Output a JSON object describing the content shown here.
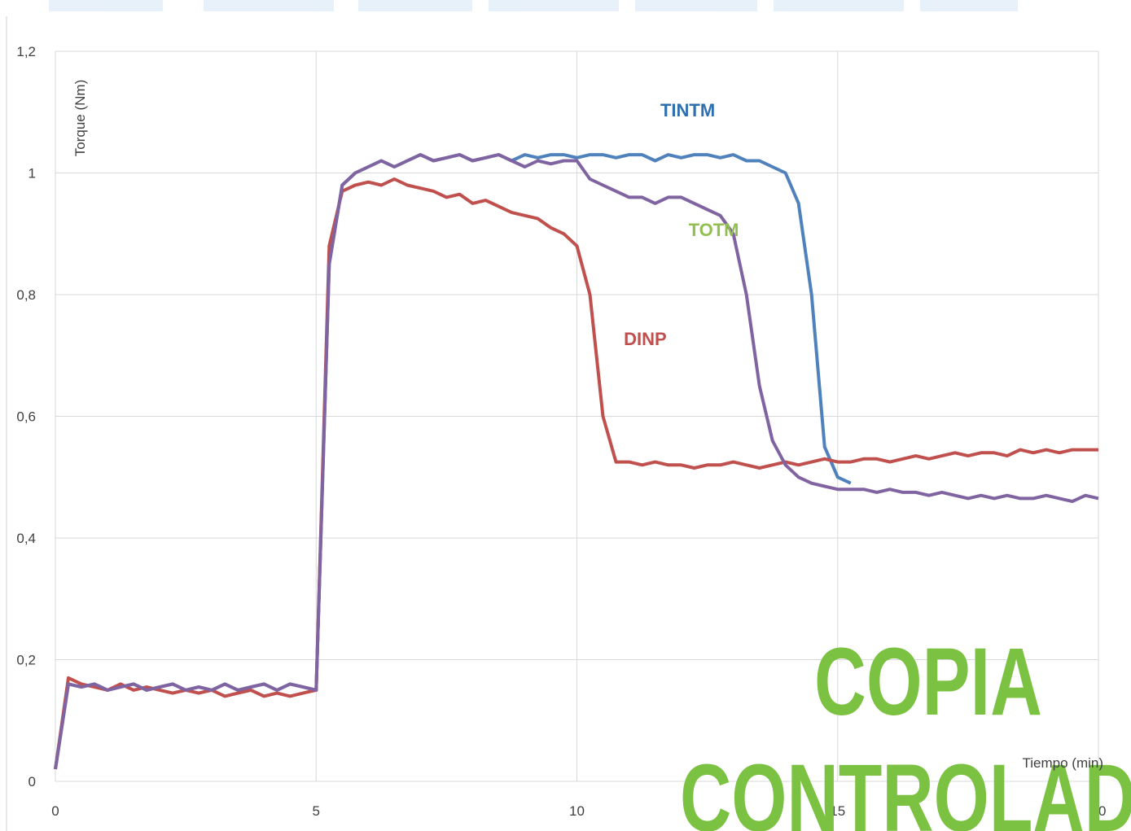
{
  "chart_data": {
    "type": "line",
    "xlabel": "Tiempo (min)",
    "ylabel": "Torque (Nm)",
    "x": [
      0,
      0.25,
      0.5,
      0.75,
      1,
      1.25,
      1.5,
      1.75,
      2,
      2.25,
      2.5,
      2.75,
      3,
      3.25,
      3.5,
      3.75,
      4,
      4.25,
      4.5,
      4.75,
      5,
      5.25,
      5.5,
      5.75,
      6,
      6.25,
      6.5,
      6.75,
      7,
      7.25,
      7.5,
      7.75,
      8,
      8.25,
      8.5,
      8.75,
      9,
      9.25,
      9.5,
      9.75,
      10,
      10.25,
      10.5,
      10.75,
      11,
      11.25,
      11.5,
      11.75,
      12,
      12.25,
      12.5,
      12.75,
      13,
      13.25,
      13.5,
      13.75,
      14,
      14.25,
      14.5,
      14.75,
      15,
      15.25,
      15.5,
      15.75,
      16,
      16.25,
      16.5,
      16.75,
      17,
      17.25,
      17.5,
      17.75,
      18,
      18.25,
      18.5,
      18.75,
      19,
      19.25,
      19.5,
      19.75,
      20
    ],
    "series": [
      {
        "color": "#4f81bd",
        "values": [
          0.02,
          0.16,
          0.155,
          0.16,
          0.15,
          0.155,
          0.16,
          0.15,
          0.155,
          0.16,
          0.15,
          0.155,
          0.15,
          0.16,
          0.15,
          0.155,
          0.16,
          0.15,
          0.16,
          0.155,
          0.15,
          0.85,
          0.98,
          1.0,
          1.01,
          1.02,
          1.01,
          1.02,
          1.03,
          1.02,
          1.025,
          1.03,
          1.02,
          1.025,
          1.03,
          1.02,
          1.03,
          1.025,
          1.03,
          1.03,
          1.025,
          1.03,
          1.03,
          1.025,
          1.03,
          1.03,
          1.02,
          1.03,
          1.025,
          1.03,
          1.03,
          1.025,
          1.03,
          1.02,
          1.02,
          1.01,
          1.0,
          0.95,
          0.8,
          0.55,
          0.5,
          0.49,
          null,
          null,
          null,
          null,
          null,
          null,
          null,
          null,
          null,
          null,
          null,
          null,
          null,
          null,
          null,
          null,
          null,
          null,
          null
        ]
      },
      {
        "color": "#c0504d",
        "values": [
          0.02,
          0.17,
          0.16,
          0.155,
          0.15,
          0.16,
          0.15,
          0.155,
          0.15,
          0.145,
          0.15,
          0.145,
          0.15,
          0.14,
          0.145,
          0.15,
          0.14,
          0.145,
          0.14,
          0.145,
          0.15,
          0.88,
          0.97,
          0.98,
          0.985,
          0.98,
          0.99,
          0.98,
          0.975,
          0.97,
          0.96,
          0.965,
          0.95,
          0.955,
          0.945,
          0.935,
          0.93,
          0.925,
          0.91,
          0.9,
          0.88,
          0.8,
          0.6,
          0.525,
          0.525,
          0.52,
          0.525,
          0.52,
          0.52,
          0.515,
          0.52,
          0.52,
          0.525,
          0.52,
          0.515,
          0.52,
          0.525,
          0.52,
          0.525,
          0.53,
          0.525,
          0.525,
          0.53,
          0.53,
          0.525,
          0.53,
          0.535,
          0.53,
          0.535,
          0.54,
          0.535,
          0.54,
          0.54,
          0.535,
          0.545,
          0.54,
          0.545,
          0.54,
          0.545,
          0.545,
          0.545
        ]
      },
      {
        "color": "#8064a2",
        "values": [
          0.02,
          0.16,
          0.155,
          0.16,
          0.15,
          0.155,
          0.16,
          0.15,
          0.155,
          0.16,
          0.15,
          0.155,
          0.15,
          0.16,
          0.15,
          0.155,
          0.16,
          0.15,
          0.16,
          0.155,
          0.15,
          0.85,
          0.98,
          1.0,
          1.01,
          1.02,
          1.01,
          1.02,
          1.03,
          1.02,
          1.025,
          1.03,
          1.02,
          1.025,
          1.03,
          1.02,
          1.01,
          1.02,
          1.015,
          1.02,
          1.02,
          0.99,
          0.98,
          0.97,
          0.96,
          0.96,
          0.95,
          0.96,
          0.96,
          0.95,
          0.94,
          0.93,
          0.9,
          0.8,
          0.65,
          0.56,
          0.52,
          0.5,
          0.49,
          0.485,
          0.48,
          0.48,
          0.48,
          0.475,
          0.48,
          0.475,
          0.475,
          0.47,
          0.475,
          0.47,
          0.465,
          0.47,
          0.465,
          0.47,
          0.465,
          0.465,
          0.47,
          0.465,
          0.46,
          0.47,
          0.465
        ]
      }
    ],
    "annotations": [
      {
        "text": "TINTM",
        "x": 11.6,
        "y": 1.093,
        "color": "#2e6fb0"
      },
      {
        "text": "TOTM",
        "x": 12.14,
        "y": 0.896,
        "color": "#92c050"
      },
      {
        "text": "DINP",
        "x": 10.9,
        "y": 0.717,
        "color": "#c0504d"
      }
    ],
    "watermark": [
      "COPIA",
      "CONTROLAD"
    ],
    "xlim": [
      0,
      20
    ],
    "ylim": [
      0,
      1.2
    ],
    "xticks": [
      0,
      5,
      10,
      15,
      20
    ],
    "yticks": [
      0,
      {
        "value": 0.2,
        "label": "0,2"
      },
      {
        "value": 0.4,
        "label": "0,4"
      },
      {
        "value": 0.6,
        "label": "0,6"
      },
      {
        "value": 0.8,
        "label": "0,8"
      },
      1,
      {
        "value": 1.2,
        "label": "1,2"
      }
    ],
    "grid": true
  }
}
